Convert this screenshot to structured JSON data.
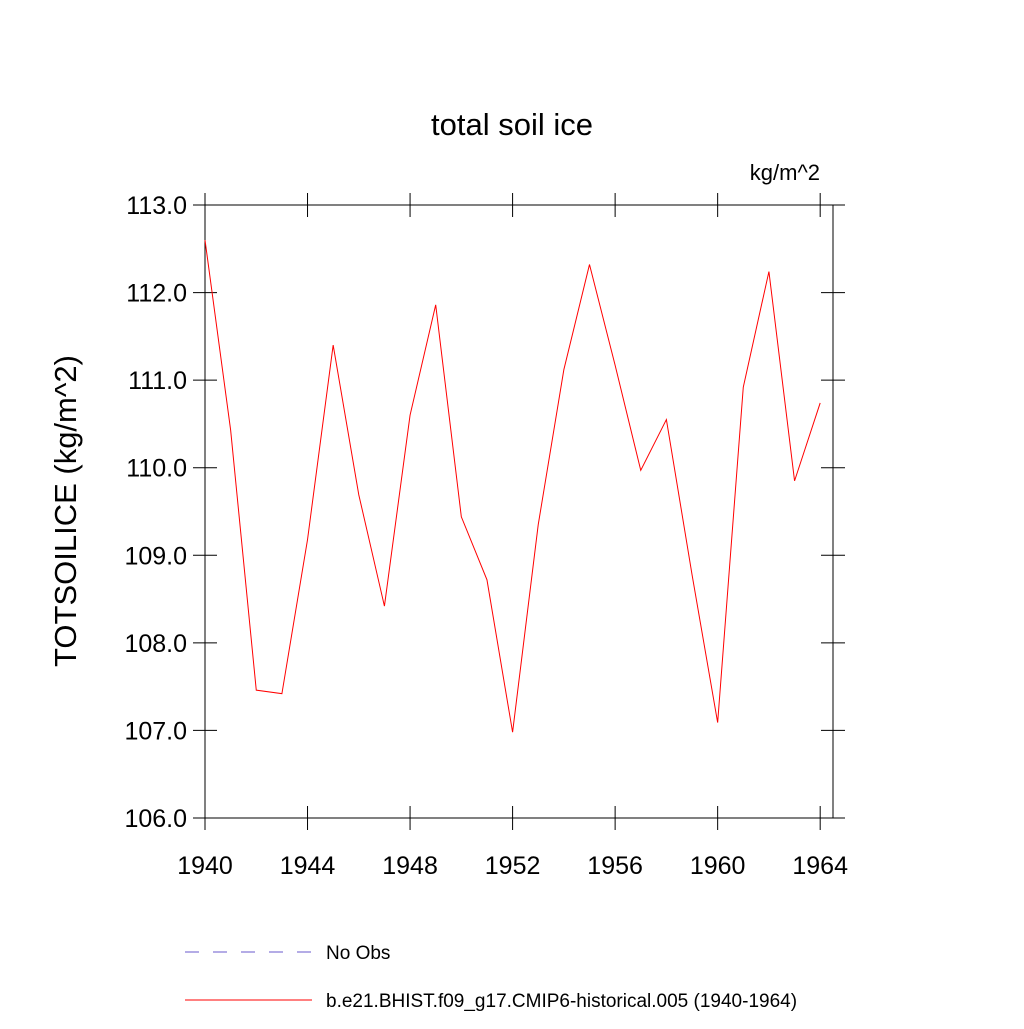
{
  "chart_data": {
    "type": "line",
    "title": "total soil ice",
    "units": "kg/m^2",
    "y_label": "TOTSOILICE  (kg/m^2)",
    "x": [
      1940,
      1941,
      1942,
      1943,
      1944,
      1945,
      1946,
      1947,
      1948,
      1949,
      1950,
      1951,
      1952,
      1953,
      1954,
      1955,
      1956,
      1957,
      1958,
      1959,
      1960,
      1961,
      1962,
      1963,
      1964
    ],
    "series": [
      {
        "name": "No Obs",
        "color": "#6a5acd",
        "dashed": true,
        "values": [
          null,
          null,
          null,
          null,
          null,
          null,
          null,
          null,
          null,
          null,
          null,
          null,
          null,
          null,
          null,
          null,
          null,
          null,
          null,
          null,
          null,
          null,
          null,
          null,
          null
        ]
      },
      {
        "name": "b.e21.BHIST.f09_g17.CMIP6-historical.005 (1940-1964)",
        "color": "#ff0000",
        "dashed": false,
        "values": [
          112.6,
          110.43,
          107.46,
          107.42,
          109.18,
          111.4,
          109.69,
          108.42,
          110.6,
          111.86,
          109.44,
          108.72,
          106.98,
          109.35,
          111.12,
          112.32,
          111.17,
          109.97,
          110.55,
          108.78,
          107.09,
          110.92,
          112.24,
          109.85,
          110.74
        ]
      }
    ],
    "xlim": [
      1940,
      1964.5
    ],
    "xticks": [
      1940,
      1944,
      1948,
      1952,
      1956,
      1960,
      1964
    ],
    "ylim": [
      106,
      113
    ],
    "yticks": [
      {
        "value": 106,
        "label": "106.0"
      },
      {
        "value": 107,
        "label": "107.0"
      },
      {
        "value": 108,
        "label": "108.0"
      },
      {
        "value": 109,
        "label": "109.0"
      },
      {
        "value": 110,
        "label": "110.0"
      },
      {
        "value": 111,
        "label": "111.0"
      },
      {
        "value": 112,
        "label": "112.0"
      },
      {
        "value": 113,
        "label": "113.0"
      }
    ]
  }
}
